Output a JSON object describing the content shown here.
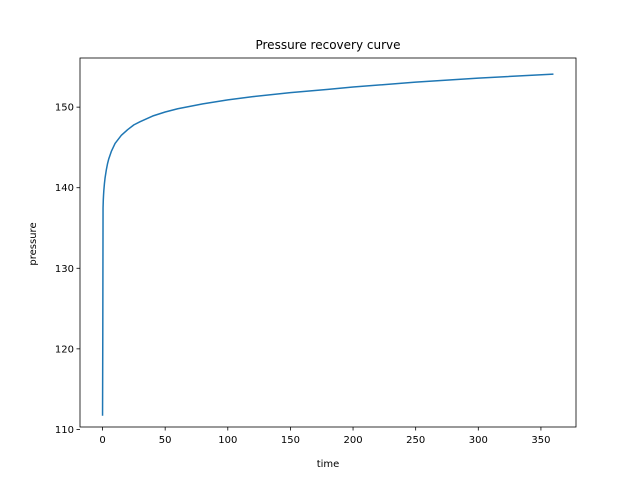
{
  "chart_data": {
    "type": "line",
    "title": "Pressure recovery curve",
    "xlabel": "time",
    "ylabel": "pressure",
    "xlim": [
      -18,
      378
    ],
    "ylim": [
      110.3,
      156.1
    ],
    "xticks": [
      0,
      50,
      100,
      150,
      200,
      250,
      300,
      350
    ],
    "yticks": [
      110,
      120,
      130,
      140,
      150
    ],
    "grid": false,
    "series": [
      {
        "color": "#1f77b4",
        "x": [
          0,
          0.2,
          0.4,
          0.6,
          0.8,
          1,
          1.5,
          2,
          3,
          4,
          5,
          7,
          10,
          15,
          20,
          25,
          30,
          40,
          50,
          60,
          80,
          100,
          120,
          150,
          180,
          200,
          250,
          300,
          360
        ],
        "y": [
          111.7,
          122,
          137.5,
          138.5,
          139.1,
          139.6,
          140.5,
          141.2,
          142.2,
          143,
          143.6,
          144.5,
          145.5,
          146.5,
          147.2,
          147.8,
          148.2,
          148.9,
          149.4,
          149.8,
          150.4,
          150.9,
          151.3,
          151.8,
          152.2,
          152.5,
          153.1,
          153.6,
          154.1
        ]
      }
    ]
  }
}
